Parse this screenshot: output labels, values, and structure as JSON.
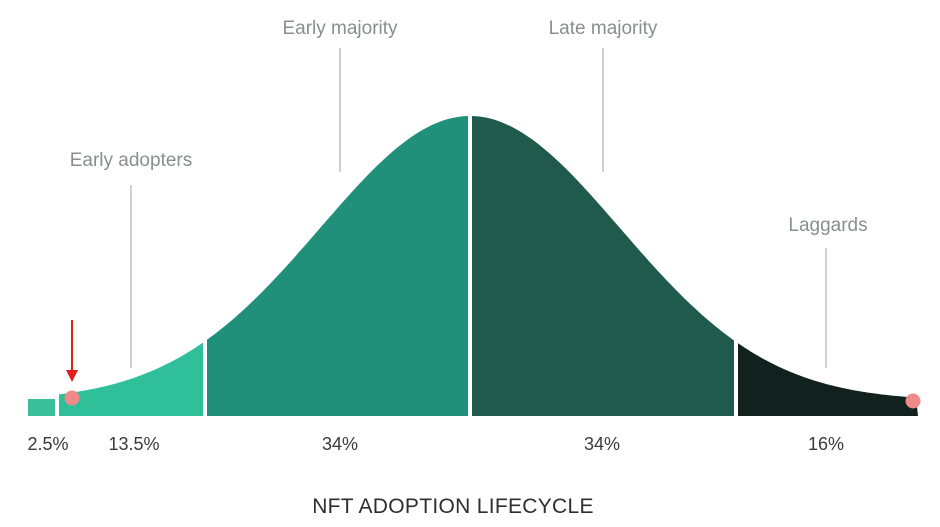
{
  "title": "NFT ADOPTION LIFECYCLE",
  "segments": [
    {
      "name": "",
      "share": "2.5%",
      "color": "#3bbf9b"
    },
    {
      "name": "Early adopters",
      "share": "13.5%",
      "color": "#2fbf99"
    },
    {
      "name": "Early majority",
      "share": "34%",
      "color": "#21907a"
    },
    {
      "name": "Late majority",
      "share": "34%",
      "color": "#1f5a4c"
    },
    {
      "name": "Laggards",
      "share": "16%",
      "color": "#11211e"
    }
  ],
  "markers": {
    "dot_color": "#f08a8a",
    "arrow_color": "#e0201a"
  }
}
